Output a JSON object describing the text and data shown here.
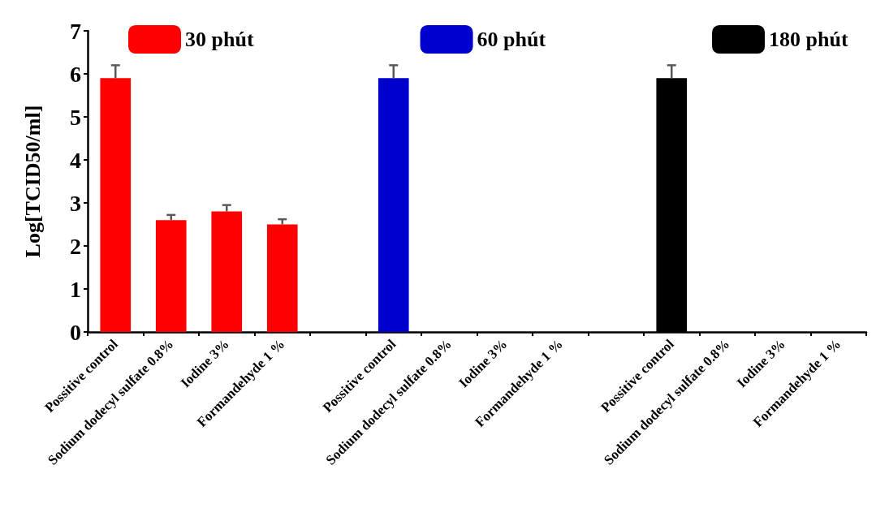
{
  "chart_data": {
    "type": "bar",
    "ylabel": "Log[TCID50/ml]",
    "categories": [
      "Possitive control",
      "Sodium dodecyl sulfate 0.8%",
      "Iodine 3%",
      "Formandehyde 1 %",
      null,
      "Possitive control",
      "Sodium dodecyl sulfate 0.8%",
      "Iodine 3%",
      "Formandehyde 1 %",
      null,
      "Possitive control",
      "Sodium dodecyl sulfate 0.8%",
      "Iodine 3%",
      "Formandehyde 1 %"
    ],
    "series": [
      {
        "name": "30 phút",
        "color": "#ff0000",
        "values": [
          5.9,
          2.6,
          2.8,
          2.5,
          null,
          null,
          null,
          null,
          null,
          null,
          null,
          null,
          null,
          null
        ],
        "errors": [
          0.3,
          0.12,
          0.15,
          0.12,
          null,
          null,
          null,
          null,
          null,
          null,
          null,
          null,
          null,
          null
        ]
      },
      {
        "name": "60 phút",
        "color": "#0000cc",
        "values": [
          null,
          null,
          null,
          null,
          null,
          5.9,
          0,
          0,
          0,
          null,
          null,
          null,
          null,
          null
        ],
        "errors": [
          null,
          null,
          null,
          null,
          null,
          0.3,
          null,
          null,
          null,
          null,
          null,
          null,
          null,
          null
        ]
      },
      {
        "name": "180 phút",
        "color": "#000000",
        "values": [
          null,
          null,
          null,
          null,
          null,
          null,
          null,
          null,
          null,
          null,
          5.9,
          0,
          0,
          0
        ],
        "errors": [
          null,
          null,
          null,
          null,
          null,
          null,
          null,
          null,
          null,
          null,
          0.3,
          null,
          null,
          null
        ]
      }
    ],
    "stacked": true,
    "ylim": [
      0,
      7
    ],
    "yticks": [
      0,
      1,
      2,
      3,
      4,
      5,
      6,
      7
    ],
    "grid": false,
    "legend": "top"
  }
}
